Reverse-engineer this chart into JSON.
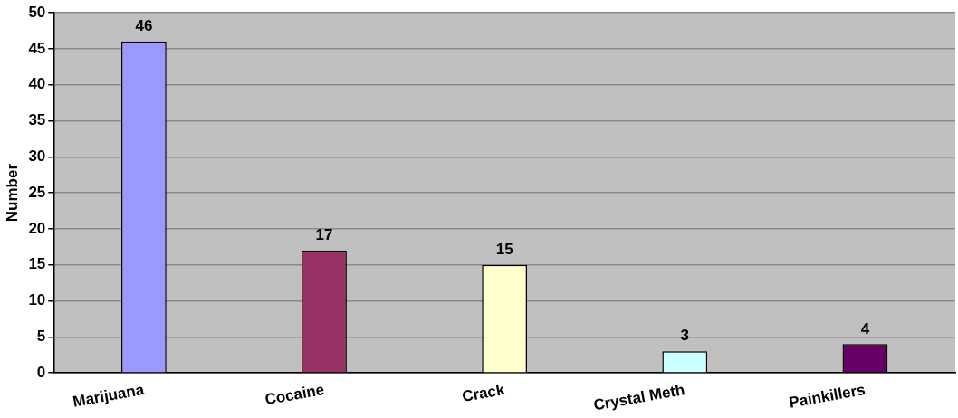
{
  "chart_data": {
    "type": "bar",
    "ylabel": "Number",
    "categories": [
      "Marijuana",
      "Cocaine",
      "Crack",
      "Crystal Meth",
      "Painkillers"
    ],
    "values": [
      46,
      17,
      15,
      3,
      4
    ],
    "colors": [
      "#9999ff",
      "#993366",
      "#ffffcc",
      "#ccffff",
      "#660066"
    ],
    "ylim": [
      0,
      50
    ],
    "yticks": [
      0,
      5,
      10,
      15,
      20,
      25,
      30,
      35,
      40,
      45,
      50
    ],
    "grid": "y",
    "data_labels": true,
    "legend": false
  }
}
